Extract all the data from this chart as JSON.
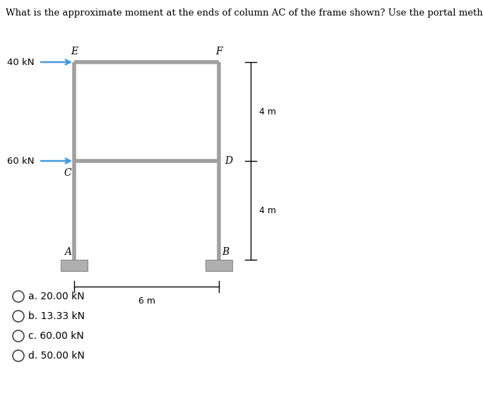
{
  "title": "What is the approximate moment at the ends of column AC of the frame shown? Use the portal method.",
  "title_fontsize": 9.5,
  "bg_color": "#ffffff",
  "frame_color": "#a0a0a0",
  "frame_linewidth": 4.0,
  "text_color": "#000000",
  "choices": [
    "a. 20.00 kN",
    "b. 13.33 kN",
    "c. 60.00 kN",
    "d. 50.00 kN"
  ],
  "support_color": "#b0b0b0",
  "arrow_color": "#4499dd",
  "dim_color": "#000000",
  "label_fontsize": 10,
  "choice_fontsize": 10
}
